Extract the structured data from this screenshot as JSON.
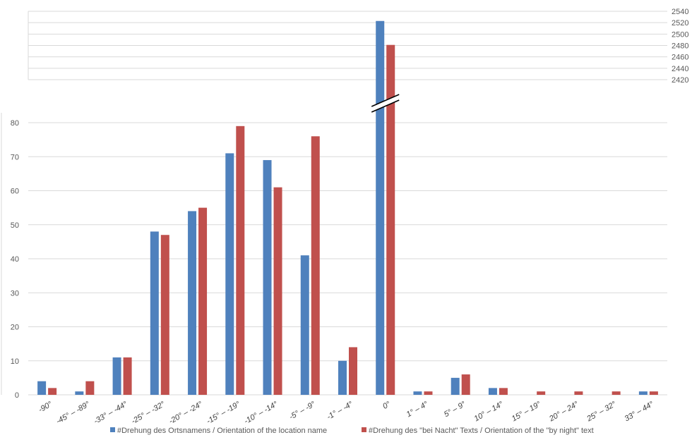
{
  "chart_data": {
    "type": "bar",
    "title": "",
    "xlabel": "",
    "ylabel": "",
    "categories": [
      "-90°",
      "-45° – -89°",
      "-33° – -44°",
      "-25° – -32°",
      "-20° – -24°",
      "-15° – -19°",
      "-10° – -14°",
      "-5° – -9°",
      "-1° – -4°",
      "0°",
      "1° – 4°",
      "5° – 9°",
      "10° – 14°",
      "15° – 19°",
      "20° – 24°",
      "25° – 32°",
      "33° – 44°"
    ],
    "series": [
      {
        "name": "#Drehung des Ortsnamens / Orientation of the location name",
        "color": "#4f81bd",
        "values": [
          4,
          1,
          11,
          48,
          54,
          71,
          69,
          41,
          10,
          2523,
          1,
          5,
          2,
          0,
          0,
          0,
          1
        ]
      },
      {
        "name": "#Drehung des \"bei Nacht\" Texts / Orientation of the \"by night\" text",
        "color": "#c0504d",
        "values": [
          2,
          4,
          11,
          47,
          55,
          79,
          61,
          76,
          14,
          2481,
          1,
          6,
          2,
          1,
          1,
          1,
          1
        ]
      }
    ],
    "ylim_lower": [
      0,
      80
    ],
    "yticks_lower": [
      "0",
      "10",
      "20",
      "30",
      "40",
      "50",
      "60",
      "70",
      "80"
    ],
    "ylim_upper": [
      2420,
      2540
    ],
    "yticks_upper": [
      "2420",
      "2440",
      "2460",
      "2480",
      "2500",
      "2520",
      "2540"
    ],
    "axis_break": true,
    "grid": true,
    "legend_position": "bottom"
  }
}
